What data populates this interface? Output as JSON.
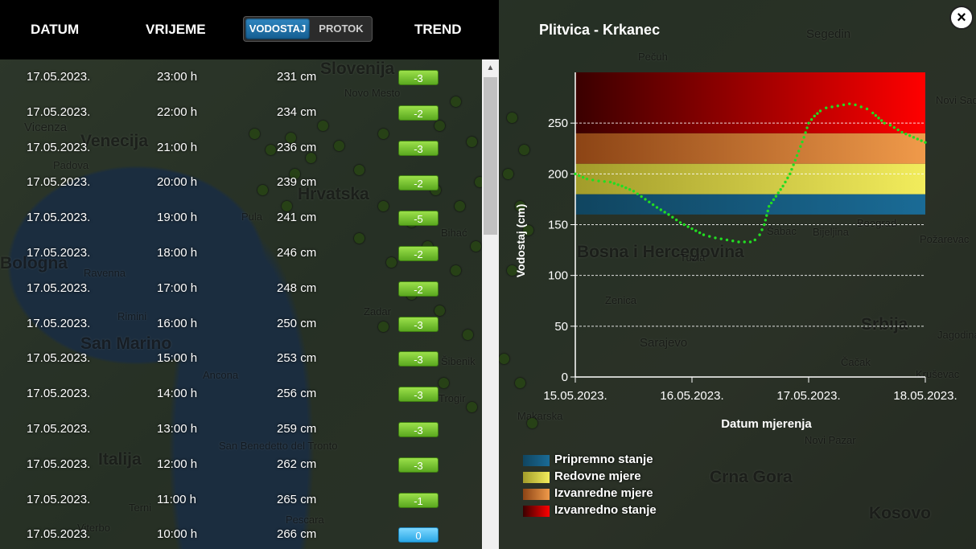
{
  "header": {
    "col_date": "DATUM",
    "col_time": "VRIJEME",
    "toggle_active": "VODOSTAJ",
    "toggle_inactive": "PROTOK",
    "col_trend": "TREND"
  },
  "rows": [
    {
      "date": "17.05.2023.",
      "time": "23:00 h",
      "value": "231 cm",
      "trend": "-3"
    },
    {
      "date": "17.05.2023.",
      "time": "22:00 h",
      "value": "234 cm",
      "trend": "-2"
    },
    {
      "date": "17.05.2023.",
      "time": "21:00 h",
      "value": "236 cm",
      "trend": "-3"
    },
    {
      "date": "17.05.2023.",
      "time": "20:00 h",
      "value": "239 cm",
      "trend": "-2"
    },
    {
      "date": "17.05.2023.",
      "time": "19:00 h",
      "value": "241 cm",
      "trend": "-5"
    },
    {
      "date": "17.05.2023.",
      "time": "18:00 h",
      "value": "246 cm",
      "trend": "-2"
    },
    {
      "date": "17.05.2023.",
      "time": "17:00 h",
      "value": "248 cm",
      "trend": "-2"
    },
    {
      "date": "17.05.2023.",
      "time": "16:00 h",
      "value": "250 cm",
      "trend": "-3"
    },
    {
      "date": "17.05.2023.",
      "time": "15:00 h",
      "value": "253 cm",
      "trend": "-3"
    },
    {
      "date": "17.05.2023.",
      "time": "14:00 h",
      "value": "256 cm",
      "trend": "-3"
    },
    {
      "date": "17.05.2023.",
      "time": "13:00 h",
      "value": "259 cm",
      "trend": "-3"
    },
    {
      "date": "17.05.2023.",
      "time": "12:00 h",
      "value": "262 cm",
      "trend": "-3"
    },
    {
      "date": "17.05.2023.",
      "time": "11:00 h",
      "value": "265 cm",
      "trend": "-1"
    },
    {
      "date": "17.05.2023.",
      "time": "10:00 h",
      "value": "266 cm",
      "trend": "0"
    }
  ],
  "station_title": "Plitvica - Krkanec",
  "close_icon": "×",
  "scroll_up_icon": "▲",
  "map_labels": [
    "Slovenija",
    "Novo Mesto",
    "Hrvatska",
    "Venecija",
    "Vicenza",
    "Padova",
    "Pula",
    "Bihać",
    "Bologna",
    "Ravenna",
    "Rimini",
    "San Marino",
    "Zadar",
    "Šibenik",
    "Ancona",
    "Trogir",
    "Italija",
    "San Benedetto del Tronto",
    "Terni",
    "Pescara",
    "Viterbo",
    "Pečuh",
    "Segedin",
    "Bosna i Hercegovina",
    "Tuzla",
    "Zenica",
    "Sarajevo",
    "Srbija",
    "Crna Gora",
    "Kosovo",
    "Novi Pazar",
    "Čačak",
    "Kruševac",
    "Požarevac",
    "Jagodina",
    "Makarska",
    "Beograd",
    "Šabac",
    "Bijeljina",
    "Novi Sad"
  ],
  "chart_data": {
    "type": "line",
    "title": "Plitvica - Krkanec",
    "xlabel": "Datum mjerenja",
    "ylabel": "Vodostaj (cm)",
    "ylim": [
      0,
      300
    ],
    "yticks": [
      0,
      50,
      100,
      150,
      200,
      250
    ],
    "xticks": [
      "15.05.2023.",
      "16.05.2023.",
      "17.05.2023.",
      "18.05.2023."
    ],
    "xlim_days": [
      0,
      3
    ],
    "grid": true,
    "series": [
      {
        "color": "#22dd22",
        "x_days": [
          0.0,
          0.1,
          0.2,
          0.3,
          0.4,
          0.5,
          0.6,
          0.7,
          0.8,
          0.9,
          1.0,
          1.1,
          1.2,
          1.3,
          1.4,
          1.5,
          1.54,
          1.58,
          1.62,
          1.66,
          1.72,
          1.78,
          1.84,
          1.9,
          1.96,
          2.0,
          2.05,
          2.1,
          2.15,
          2.2,
          2.25,
          2.3,
          2.35,
          2.4,
          2.45,
          2.5,
          2.55,
          2.6,
          2.65,
          2.7,
          2.8,
          2.9,
          3.0
        ],
        "values": [
          200,
          195,
          193,
          192,
          188,
          183,
          175,
          167,
          160,
          152,
          146,
          140,
          137,
          135,
          133,
          133,
          135,
          140,
          150,
          168,
          178,
          188,
          200,
          218,
          236,
          250,
          257,
          262,
          265,
          266,
          267,
          268,
          269,
          268,
          266,
          264,
          260,
          255,
          250,
          248,
          241,
          236,
          231
        ]
      }
    ],
    "bands": [
      {
        "name": "Pripremno stanje",
        "from": 160,
        "to": 180,
        "color": "#1a6b96"
      },
      {
        "name": "Redovne mjere",
        "from": 180,
        "to": 210,
        "color": "#e5df4a"
      },
      {
        "name": "Izvanredne mjere",
        "from": 210,
        "to": 240,
        "color": "#e07a2a"
      },
      {
        "name": "Izvanredno stanje",
        "from": 240,
        "to": 300,
        "color": "#e00000"
      }
    ],
    "legend_position": "bottom-left"
  }
}
